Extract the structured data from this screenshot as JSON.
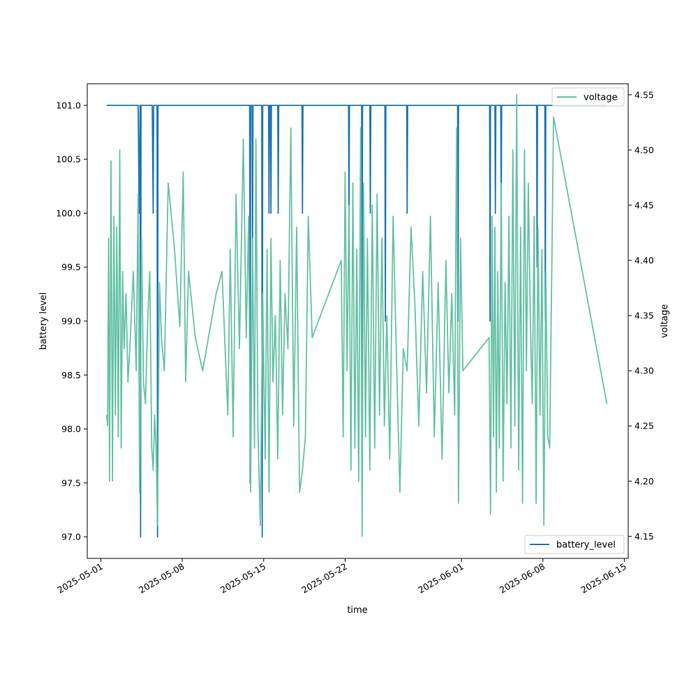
{
  "chart_data": {
    "type": "line",
    "title": "",
    "xlabel": "time",
    "ylabel": "battery level",
    "y2label": "voltage",
    "x_tick_labels": [
      "2025-05-01",
      "2025-05-08",
      "2025-05-15",
      "2025-05-22",
      "2025-06-01",
      "2025-06-08",
      "2025-06-15"
    ],
    "xlim": [
      "2025-04-29T20:00",
      "2025-06-15T08:00"
    ],
    "ylim": [
      96.8,
      101.2
    ],
    "y_ticks": [
      "97.0",
      "97.5",
      "98.0",
      "98.5",
      "99.0",
      "99.5",
      "100.0",
      "100.5",
      "101.0"
    ],
    "y2lim": [
      4.13,
      4.56
    ],
    "y2_ticks": [
      "4.15",
      "4.20",
      "4.25",
      "4.30",
      "4.35",
      "4.40",
      "4.45",
      "4.50",
      "4.55"
    ],
    "grid": false,
    "series": [
      {
        "name": "battery_level",
        "axis": "left",
        "color": "#1f77b4",
        "legend_position": "lower-right",
        "points": [
          [
            "2025-05-01T12:00",
            101
          ],
          [
            "2025-05-04T05:00",
            101
          ],
          [
            "2025-05-04T07:00",
            100
          ],
          [
            "2025-05-04T09:00",
            101
          ],
          [
            "2025-05-04T10:00",
            97
          ],
          [
            "2025-05-04T11:00",
            101
          ],
          [
            "2025-05-05T10:00",
            101
          ],
          [
            "2025-05-05T12:00",
            100
          ],
          [
            "2025-05-05T13:00",
            101
          ],
          [
            "2025-05-05T20:00",
            101
          ],
          [
            "2025-05-05T21:00",
            97
          ],
          [
            "2025-05-05T22:00",
            101
          ],
          [
            "2025-05-13T19:00",
            101
          ],
          [
            "2025-05-13T20:00",
            97.5
          ],
          [
            "2025-05-13T21:00",
            101
          ],
          [
            "2025-05-14T00:00",
            101
          ],
          [
            "2025-05-14T01:00",
            99.5
          ],
          [
            "2025-05-14T02:00",
            101
          ],
          [
            "2025-05-14T20:00",
            101
          ],
          [
            "2025-05-14T21:00",
            97
          ],
          [
            "2025-05-14T22:00",
            101
          ],
          [
            "2025-05-15T10:00",
            101
          ],
          [
            "2025-05-15T11:00",
            100
          ],
          [
            "2025-05-15T12:00",
            101
          ],
          [
            "2025-05-15T14:00",
            101
          ],
          [
            "2025-05-15T15:00",
            100
          ],
          [
            "2025-05-15T16:00",
            101
          ],
          [
            "2025-05-16T05:00",
            101
          ],
          [
            "2025-05-16T06:00",
            100
          ],
          [
            "2025-05-16T07:00",
            101
          ],
          [
            "2025-05-18T07:00",
            101
          ],
          [
            "2025-05-18T08:00",
            100
          ],
          [
            "2025-05-18T09:00",
            101
          ],
          [
            "2025-05-22T07:00",
            101
          ],
          [
            "2025-05-22T08:00",
            100
          ],
          [
            "2025-05-22T09:00",
            101
          ],
          [
            "2025-05-23T10:00",
            101
          ],
          [
            "2025-05-23T11:00",
            98.5
          ],
          [
            "2025-05-23T12:00",
            101
          ],
          [
            "2025-05-24T03:00",
            101
          ],
          [
            "2025-05-24T04:00",
            100
          ],
          [
            "2025-05-24T05:00",
            101
          ],
          [
            "2025-05-25T10:00",
            101
          ],
          [
            "2025-05-25T11:00",
            99
          ],
          [
            "2025-05-25T12:00",
            101
          ],
          [
            "2025-05-27T07:00",
            101
          ],
          [
            "2025-05-27T08:00",
            100
          ],
          [
            "2025-05-27T09:00",
            101
          ],
          [
            "2025-05-31T16:00",
            101
          ],
          [
            "2025-05-31T17:00",
            99
          ],
          [
            "2025-05-31T18:00",
            101
          ],
          [
            "2025-06-03T10:00",
            101
          ],
          [
            "2025-06-03T11:00",
            99
          ],
          [
            "2025-06-03T12:00",
            101
          ],
          [
            "2025-06-03T21:00",
            101
          ],
          [
            "2025-06-03T22:00",
            100
          ],
          [
            "2025-06-03T23:00",
            101
          ],
          [
            "2025-06-04T09:00",
            101
          ],
          [
            "2025-06-04T10:00",
            100
          ],
          [
            "2025-06-04T11:00",
            101
          ],
          [
            "2025-06-07T11:00",
            101
          ],
          [
            "2025-06-07T12:00",
            99.5
          ],
          [
            "2025-06-07T13:00",
            101
          ],
          [
            "2025-06-08T04:00",
            101
          ],
          [
            "2025-06-08T05:00",
            99
          ],
          [
            "2025-06-08T06:00",
            101
          ],
          [
            "2025-06-13T12:00",
            101
          ]
        ]
      },
      {
        "name": "voltage",
        "axis": "right",
        "color": "#66c2a5",
        "legend_position": "upper-right",
        "points": [
          [
            "2025-05-01T12:00",
            4.26
          ],
          [
            "2025-05-01T14:00",
            4.25
          ],
          [
            "2025-05-01T16:00",
            4.42
          ],
          [
            "2025-05-01T18:00",
            4.2
          ],
          [
            "2025-05-01T21:00",
            4.49
          ],
          [
            "2025-05-02T00:00",
            4.2
          ],
          [
            "2025-05-02T03:00",
            4.44
          ],
          [
            "2025-05-02T06:00",
            4.26
          ],
          [
            "2025-05-02T09:00",
            4.43
          ],
          [
            "2025-05-02T12:00",
            4.24
          ],
          [
            "2025-05-02T15:00",
            4.5
          ],
          [
            "2025-05-02T18:00",
            4.23
          ],
          [
            "2025-05-02T21:00",
            4.39
          ],
          [
            "2025-05-03T00:00",
            4.32
          ],
          [
            "2025-05-03T04:00",
            4.37
          ],
          [
            "2025-05-03T08:00",
            4.29
          ],
          [
            "2025-05-03T13:00",
            4.33
          ],
          [
            "2025-05-03T19:00",
            4.39
          ],
          [
            "2025-05-04T01:00",
            4.3
          ],
          [
            "2025-05-04T05:00",
            4.46
          ],
          [
            "2025-05-04T08:00",
            4.19
          ],
          [
            "2025-05-04T12:00",
            4.42
          ],
          [
            "2025-05-04T16:00",
            4.29
          ],
          [
            "2025-05-04T20:00",
            4.27
          ],
          [
            "2025-05-05T01:00",
            4.35
          ],
          [
            "2025-05-05T05:00",
            4.39
          ],
          [
            "2025-05-05T09:00",
            4.23
          ],
          [
            "2025-05-05T12:00",
            4.21
          ],
          [
            "2025-05-05T15:00",
            4.26
          ],
          [
            "2025-05-05T18:00",
            4.23
          ],
          [
            "2025-05-05T21:00",
            4.16
          ],
          [
            "2025-05-06T01:00",
            4.38
          ],
          [
            "2025-05-06T05:00",
            4.33
          ],
          [
            "2025-05-06T11:00",
            4.3
          ],
          [
            "2025-05-06T19:00",
            4.47
          ],
          [
            "2025-05-07T08:00",
            4.41
          ],
          [
            "2025-05-07T19:00",
            4.34
          ],
          [
            "2025-05-08T02:00",
            4.48
          ],
          [
            "2025-05-08T07:00",
            4.29
          ],
          [
            "2025-05-08T13:00",
            4.39
          ],
          [
            "2025-05-09T03:00",
            4.33
          ],
          [
            "2025-05-09T18:00",
            4.3
          ],
          [
            "2025-05-10T22:00",
            4.37
          ],
          [
            "2025-05-11T10:00",
            4.39
          ],
          [
            "2025-05-11T22:00",
            4.26
          ],
          [
            "2025-05-12T03:00",
            4.41
          ],
          [
            "2025-05-12T09:00",
            4.24
          ],
          [
            "2025-05-12T15:00",
            4.46
          ],
          [
            "2025-05-12T22:00",
            4.32
          ],
          [
            "2025-05-13T06:00",
            4.51
          ],
          [
            "2025-05-13T12:00",
            4.33
          ],
          [
            "2025-05-13T17:00",
            4.44
          ],
          [
            "2025-05-13T21:00",
            4.19
          ],
          [
            "2025-05-14T01:00",
            4.42
          ],
          [
            "2025-05-14T05:00",
            4.23
          ],
          [
            "2025-05-14T08:00",
            4.51
          ],
          [
            "2025-05-14T12:00",
            4.25
          ],
          [
            "2025-05-14T17:00",
            4.16
          ],
          [
            "2025-05-14T22:00",
            4.37
          ],
          [
            "2025-05-15T03:00",
            4.22
          ],
          [
            "2025-05-15T07:00",
            4.41
          ],
          [
            "2025-05-15T11:00",
            4.19
          ],
          [
            "2025-05-15T15:00",
            4.42
          ],
          [
            "2025-05-15T19:00",
            4.29
          ],
          [
            "2025-05-16T00:00",
            4.35
          ],
          [
            "2025-05-16T05:00",
            4.22
          ],
          [
            "2025-05-16T10:00",
            4.4
          ],
          [
            "2025-05-16T15:00",
            4.26
          ],
          [
            "2025-05-16T20:00",
            4.37
          ],
          [
            "2025-05-17T02:00",
            4.32
          ],
          [
            "2025-05-17T08:00",
            4.52
          ],
          [
            "2025-05-17T14:00",
            4.25
          ],
          [
            "2025-05-17T20:00",
            4.43
          ],
          [
            "2025-05-18T02:00",
            4.19
          ],
          [
            "2025-05-18T08:00",
            4.21
          ],
          [
            "2025-05-18T14:00",
            4.24
          ],
          [
            "2025-05-18T20:00",
            4.44
          ],
          [
            "2025-05-19T04:00",
            4.33
          ],
          [
            "2025-05-21T16:00",
            4.4
          ],
          [
            "2025-05-21T20:00",
            4.24
          ],
          [
            "2025-05-22T00:00",
            4.48
          ],
          [
            "2025-05-22T04:00",
            4.3
          ],
          [
            "2025-05-22T08:00",
            4.45
          ],
          [
            "2025-05-22T12:00",
            4.21
          ],
          [
            "2025-05-22T16:00",
            4.47
          ],
          [
            "2025-05-22T20:00",
            4.23
          ],
          [
            "2025-05-23T00:00",
            4.41
          ],
          [
            "2025-05-23T04:00",
            4.2
          ],
          [
            "2025-05-23T08:00",
            4.52
          ],
          [
            "2025-05-23T11:00",
            4.15
          ],
          [
            "2025-05-23T14:00",
            4.47
          ],
          [
            "2025-05-23T18:00",
            4.24
          ],
          [
            "2025-05-23T22:00",
            4.42
          ],
          [
            "2025-05-24T03:00",
            4.21
          ],
          [
            "2025-05-24T08:00",
            4.45
          ],
          [
            "2025-05-24T13:00",
            4.23
          ],
          [
            "2025-05-24T18:00",
            4.46
          ],
          [
            "2025-05-24T23:00",
            4.26
          ],
          [
            "2025-05-25T04:00",
            4.42
          ],
          [
            "2025-05-25T09:00",
            4.25
          ],
          [
            "2025-05-25T14:00",
            4.35
          ],
          [
            "2025-05-25T20:00",
            4.22
          ],
          [
            "2025-05-26T03:00",
            4.44
          ],
          [
            "2025-05-26T10:00",
            4.31
          ],
          [
            "2025-05-26T17:00",
            4.19
          ],
          [
            "2025-05-27T00:00",
            4.32
          ],
          [
            "2025-05-27T08:00",
            4.3
          ],
          [
            "2025-05-27T16:00",
            4.43
          ],
          [
            "2025-05-28T00:00",
            4.36
          ],
          [
            "2025-05-28T08:00",
            4.25
          ],
          [
            "2025-05-28T16:00",
            4.39
          ],
          [
            "2025-05-29T00:00",
            4.28
          ],
          [
            "2025-05-29T08:00",
            4.44
          ],
          [
            "2025-05-29T16:00",
            4.24
          ],
          [
            "2025-05-30T00:00",
            4.38
          ],
          [
            "2025-05-30T08:00",
            4.22
          ],
          [
            "2025-05-30T16:00",
            4.4
          ],
          [
            "2025-05-30T22:00",
            4.28
          ],
          [
            "2025-05-31T04:00",
            4.37
          ],
          [
            "2025-05-31T10:00",
            4.26
          ],
          [
            "2025-05-31T14:00",
            4.52
          ],
          [
            "2025-05-31T18:00",
            4.18
          ],
          [
            "2025-05-31T22:00",
            4.42
          ],
          [
            "2025-06-01T03:00",
            4.3
          ],
          [
            "2025-06-03T09:00",
            4.33
          ],
          [
            "2025-06-03T12:00",
            4.17
          ],
          [
            "2025-06-03T15:00",
            4.44
          ],
          [
            "2025-06-03T18:00",
            4.24
          ],
          [
            "2025-06-03T21:00",
            4.43
          ],
          [
            "2025-06-04T00:00",
            4.19
          ],
          [
            "2025-06-04T03:00",
            4.39
          ],
          [
            "2025-06-04T06:00",
            4.23
          ],
          [
            "2025-06-04T10:00",
            4.47
          ],
          [
            "2025-06-04T14:00",
            4.2
          ],
          [
            "2025-06-04T18:00",
            4.38
          ],
          [
            "2025-06-04T22:00",
            4.27
          ],
          [
            "2025-06-05T02:00",
            4.44
          ],
          [
            "2025-06-05T06:00",
            4.23
          ],
          [
            "2025-06-05T10:00",
            4.5
          ],
          [
            "2025-06-05T14:00",
            4.25
          ],
          [
            "2025-06-05T18:00",
            4.55
          ],
          [
            "2025-06-05T22:00",
            4.21
          ],
          [
            "2025-06-06T02:00",
            4.43
          ],
          [
            "2025-06-06T06:00",
            4.18
          ],
          [
            "2025-06-06T10:00",
            4.5
          ],
          [
            "2025-06-06T14:00",
            4.3
          ],
          [
            "2025-06-06T18:00",
            4.47
          ],
          [
            "2025-06-06T22:00",
            4.35
          ],
          [
            "2025-06-07T02:00",
            4.27
          ],
          [
            "2025-06-07T06:00",
            4.44
          ],
          [
            "2025-06-07T10:00",
            4.18
          ],
          [
            "2025-06-07T14:00",
            4.43
          ],
          [
            "2025-06-07T18:00",
            4.26
          ],
          [
            "2025-06-07T22:00",
            4.41
          ],
          [
            "2025-06-08T02:00",
            4.16
          ],
          [
            "2025-06-08T06:00",
            4.39
          ],
          [
            "2025-06-08T10:00",
            4.24
          ],
          [
            "2025-06-08T14:00",
            4.23
          ],
          [
            "2025-06-08T22:00",
            4.53
          ],
          [
            "2025-06-13T12:00",
            4.27
          ]
        ]
      }
    ]
  }
}
